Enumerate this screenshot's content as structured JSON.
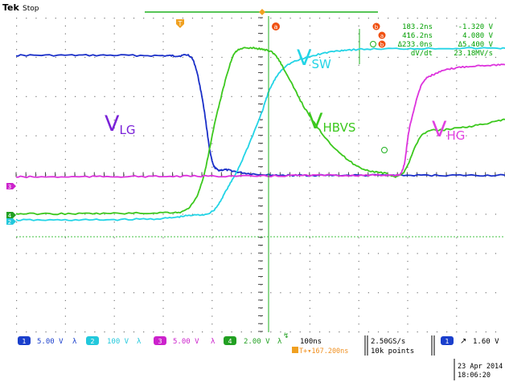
{
  "header": {
    "brand": "Tek",
    "mode": "Stop"
  },
  "cursor_readout": {
    "rows": [
      {
        "time": "183.2ns",
        "volt": "-1.320 V"
      },
      {
        "time": "416.2ns",
        "volt": "4.080 V"
      },
      {
        "time": "Δ233.0ns",
        "volt": "Δ5.400 V"
      },
      {
        "time": "dV/dt",
        "volt": "23.18MV/s"
      }
    ],
    "color": "#00a000"
  },
  "labels": {
    "vlg": {
      "main": "V",
      "sub": "LG",
      "color": "#7a22d8"
    },
    "vsw": {
      "main": "V",
      "sub": "SW",
      "color": "#22d4e6"
    },
    "vhbvs": {
      "main": "V",
      "sub": "HBVS",
      "color": "#3cc81e"
    },
    "vhg": {
      "main": "V",
      "sub": "HG",
      "color": "#e040e0"
    }
  },
  "markers": {
    "ch1": "1",
    "ch2": "2",
    "ch3": "3",
    "ch4": "4",
    "trigger": "T",
    "cursor_a": "a",
    "cursor_b": "b"
  },
  "status_bar": {
    "channels": [
      {
        "num": "1",
        "scale": "5.00 V",
        "color": "#1a3fcc"
      },
      {
        "num": "2",
        "scale": "100 V",
        "color": "#22c8dc"
      },
      {
        "num": "3",
        "scale": "5.00 V",
        "color": "#cc22cc"
      },
      {
        "num": "4",
        "scale": "2.00 V",
        "color": "#22a022"
      }
    ],
    "timebase": "100ns",
    "trigger_pos": "T+▾167.200ns",
    "sample_rate": "2.50GS/s",
    "record_length": "10k points",
    "trigger_channel": "1",
    "trigger_level": "1.60 V",
    "date": "23 Apr 2014",
    "time": "18:06:20"
  },
  "chart_data": {
    "type": "line",
    "xlabel": "",
    "ylabel": "",
    "x_unit": "div",
    "xlim": [
      0,
      10
    ],
    "ylim": [
      -4,
      4
    ],
    "grid": true,
    "series": [
      {
        "name": "VLG",
        "color": "#1a2fc8",
        "x": [
          0,
          1,
          2,
          3,
          3.3,
          3.6,
          3.8,
          3.98,
          4.1,
          4.3,
          4.6,
          5,
          5.5,
          6,
          7,
          8,
          9,
          10
        ],
        "y": [
          3.04,
          3.04,
          3.04,
          3.03,
          3.02,
          2.96,
          2.0,
          0.5,
          0.14,
          0.12,
          0.05,
          0.0,
          -0.02,
          -0.02,
          -0.02,
          -0.02,
          -0.02,
          -0.02
        ]
      },
      {
        "name": "VSW",
        "color": "#22d4e6",
        "x": [
          0,
          1,
          2,
          3,
          3.5,
          4,
          4.3,
          4.6,
          5,
          5.2,
          5.5,
          6,
          6.5,
          7,
          8,
          9,
          10
        ],
        "y": [
          -1.16,
          -1.16,
          -1.15,
          -1.12,
          -1.05,
          -0.95,
          -0.4,
          0.3,
          1.5,
          2.2,
          2.75,
          3.0,
          3.14,
          3.19,
          3.21,
          3.22,
          3.22
        ]
      },
      {
        "name": "VHBVS",
        "color": "#3cc81e",
        "x": [
          0,
          1,
          2,
          3,
          3.5,
          3.8,
          4.1,
          4.4,
          4.6,
          5,
          5.3,
          5.6,
          6,
          6.5,
          7,
          7.5,
          7.9,
          8.3,
          8.8,
          9.4,
          10
        ],
        "y": [
          -1.0,
          -1.0,
          -0.99,
          -0.97,
          -0.88,
          -0.2,
          1.5,
          2.9,
          3.2,
          3.2,
          3.05,
          2.4,
          1.5,
          0.7,
          0.2,
          0.04,
          0.02,
          1.0,
          1.15,
          1.25,
          1.4
        ]
      },
      {
        "name": "VHG",
        "color": "#dd33dd",
        "x": [
          0,
          1,
          2,
          3,
          4,
          5,
          6,
          7,
          7.6,
          7.9,
          8.05,
          8.3,
          8.6,
          9,
          9.5,
          10
        ],
        "y": [
          -0.06,
          -0.06,
          -0.05,
          -0.05,
          -0.04,
          -0.04,
          -0.02,
          -0.02,
          -0.01,
          0.1,
          1.2,
          2.3,
          2.58,
          2.72,
          2.78,
          2.8
        ]
      }
    ]
  }
}
